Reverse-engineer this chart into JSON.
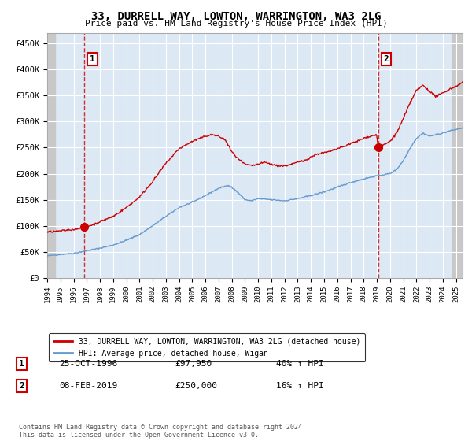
{
  "title": "33, DURRELL WAY, LOWTON, WARRINGTON, WA3 2LG",
  "subtitle": "Price paid vs. HM Land Registry's House Price Index (HPI)",
  "ylabel_ticks": [
    "£0",
    "£50K",
    "£100K",
    "£150K",
    "£200K",
    "£250K",
    "£300K",
    "£350K",
    "£400K",
    "£450K"
  ],
  "ytick_values": [
    0,
    50000,
    100000,
    150000,
    200000,
    250000,
    300000,
    350000,
    400000,
    450000
  ],
  "ylim": [
    0,
    470000
  ],
  "xlim_start": 1994.0,
  "xlim_end": 2025.5,
  "xticks": [
    1994,
    1995,
    1996,
    1997,
    1998,
    1999,
    2000,
    2001,
    2002,
    2003,
    2004,
    2005,
    2006,
    2007,
    2008,
    2009,
    2010,
    2011,
    2012,
    2013,
    2014,
    2015,
    2016,
    2017,
    2018,
    2019,
    2020,
    2021,
    2022,
    2023,
    2024,
    2025
  ],
  "sale1_x": 1996.82,
  "sale1_y": 97950,
  "sale1_label": "1",
  "sale1_date": "25-OCT-1996",
  "sale1_price": "£97,950",
  "sale1_hpi": "40% ↑ HPI",
  "sale2_x": 2019.1,
  "sale2_y": 250000,
  "sale2_label": "2",
  "sale2_date": "08-FEB-2019",
  "sale2_price": "£250,000",
  "sale2_hpi": "16% ↑ HPI",
  "line1_color": "#cc0000",
  "line2_color": "#6699cc",
  "vline_color": "#cc0000",
  "legend1_label": "33, DURRELL WAY, LOWTON, WARRINGTON, WA3 2LG (detached house)",
  "legend2_label": "HPI: Average price, detached house, Wigan",
  "footnote": "Contains HM Land Registry data © Crown copyright and database right 2024.\nThis data is licensed under the Open Government Licence v3.0.",
  "background_color": "#ffffff",
  "plot_bg_color": "#dce9f5",
  "grid_color": "#ffffff",
  "hatch_color": "#c8c8c8"
}
